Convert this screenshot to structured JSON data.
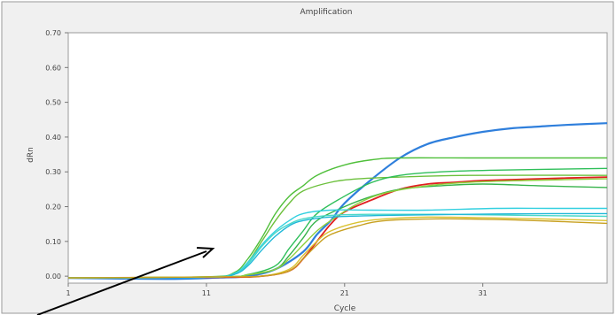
{
  "chart_data": {
    "type": "line",
    "title": "Amplification",
    "xlabel": "Cycle",
    "ylabel": "dRn",
    "xlim": [
      1,
      40
    ],
    "ylim": [
      -0.02,
      0.7
    ],
    "x_ticks": [
      "1",
      "11",
      "21",
      "31"
    ],
    "x_tick_values": [
      1,
      11,
      21,
      31
    ],
    "y_ticks": [
      "0.00",
      "0.10",
      "0.20",
      "0.30",
      "0.40",
      "0.50",
      "0.60",
      "0.70"
    ],
    "y_tick_values": [
      0,
      0.1,
      0.2,
      0.3,
      0.4,
      0.5,
      0.6,
      0.7
    ],
    "grid": false,
    "legend": "none",
    "colors": {
      "panel_bg": "#f0f0f0",
      "plot_bg": "#ffffff",
      "border": "#9a9a9a",
      "axis_text": "#444444",
      "arrow": "#000000"
    },
    "series": [
      {
        "color": "#2f7fdc",
        "width": 2.2,
        "points": [
          [
            1,
            -0.005
          ],
          [
            8,
            -0.008
          ],
          [
            12,
            -0.004
          ],
          [
            14,
            0.0
          ],
          [
            16,
            0.02
          ],
          [
            18,
            0.07
          ],
          [
            19,
            0.12
          ],
          [
            20,
            0.16
          ],
          [
            21,
            0.21
          ],
          [
            23,
            0.28
          ],
          [
            25,
            0.34
          ],
          [
            27,
            0.38
          ],
          [
            29,
            0.4
          ],
          [
            31,
            0.415
          ],
          [
            33,
            0.425
          ],
          [
            35,
            0.43
          ],
          [
            37,
            0.435
          ],
          [
            40,
            0.44
          ]
        ]
      },
      {
        "color": "#e02020",
        "width": 1.8,
        "points": [
          [
            1,
            -0.005
          ],
          [
            12,
            -0.003
          ],
          [
            15,
            0.0
          ],
          [
            17,
            0.015
          ],
          [
            18,
            0.05
          ],
          [
            19,
            0.1
          ],
          [
            20,
            0.15
          ],
          [
            21,
            0.185
          ],
          [
            23,
            0.22
          ],
          [
            25,
            0.25
          ],
          [
            27,
            0.265
          ],
          [
            29,
            0.27
          ],
          [
            31,
            0.275
          ],
          [
            35,
            0.28
          ],
          [
            40,
            0.285
          ]
        ]
      },
      {
        "color": "#4fbf3a",
        "width": 1.4,
        "points": [
          [
            1,
            -0.005
          ],
          [
            11,
            -0.002
          ],
          [
            13,
            0.01
          ],
          [
            14,
            0.05
          ],
          [
            15,
            0.11
          ],
          [
            16,
            0.18
          ],
          [
            17,
            0.23
          ],
          [
            18,
            0.26
          ],
          [
            19,
            0.29
          ],
          [
            21,
            0.32
          ],
          [
            23,
            0.335
          ],
          [
            25,
            0.34
          ],
          [
            30,
            0.34
          ],
          [
            40,
            0.34
          ]
        ]
      },
      {
        "color": "#6cc03c",
        "width": 1.4,
        "points": [
          [
            1,
            -0.005
          ],
          [
            11,
            -0.002
          ],
          [
            13,
            0.005
          ],
          [
            14,
            0.04
          ],
          [
            15,
            0.1
          ],
          [
            16,
            0.16
          ],
          [
            17,
            0.21
          ],
          [
            18,
            0.245
          ],
          [
            20,
            0.27
          ],
          [
            22,
            0.28
          ],
          [
            25,
            0.285
          ],
          [
            30,
            0.29
          ],
          [
            40,
            0.29
          ]
        ]
      },
      {
        "color": "#2fbf5a",
        "width": 1.4,
        "points": [
          [
            1,
            -0.005
          ],
          [
            12,
            -0.002
          ],
          [
            14,
            0.005
          ],
          [
            16,
            0.03
          ],
          [
            17,
            0.08
          ],
          [
            18,
            0.13
          ],
          [
            19,
            0.18
          ],
          [
            21,
            0.23
          ],
          [
            23,
            0.27
          ],
          [
            25,
            0.29
          ],
          [
            28,
            0.3
          ],
          [
            32,
            0.305
          ],
          [
            40,
            0.31
          ]
        ]
      },
      {
        "color": "#36b34a",
        "width": 1.4,
        "points": [
          [
            1,
            -0.005
          ],
          [
            12,
            -0.002
          ],
          [
            14,
            0.004
          ],
          [
            16,
            0.02
          ],
          [
            17,
            0.06
          ],
          [
            18,
            0.11
          ],
          [
            19,
            0.16
          ],
          [
            21,
            0.2
          ],
          [
            23,
            0.23
          ],
          [
            25,
            0.25
          ],
          [
            28,
            0.26
          ],
          [
            31,
            0.265
          ],
          [
            35,
            0.26
          ],
          [
            40,
            0.255
          ]
        ]
      },
      {
        "color": "#8fcf3c",
        "width": 1.4,
        "points": [
          [
            1,
            -0.005
          ],
          [
            12,
            -0.002
          ],
          [
            14,
            0.004
          ],
          [
            16,
            0.02
          ],
          [
            17,
            0.05
          ],
          [
            18,
            0.09
          ],
          [
            19,
            0.13
          ],
          [
            20,
            0.16
          ],
          [
            22,
            0.21
          ],
          [
            24,
            0.24
          ],
          [
            27,
            0.26
          ],
          [
            30,
            0.27
          ],
          [
            34,
            0.275
          ],
          [
            40,
            0.28
          ]
        ]
      },
      {
        "color": "#33d0e0",
        "width": 1.4,
        "points": [
          [
            1,
            -0.005
          ],
          [
            11,
            -0.003
          ],
          [
            13,
            0.008
          ],
          [
            14,
            0.04
          ],
          [
            15,
            0.09
          ],
          [
            16,
            0.13
          ],
          [
            17,
            0.16
          ],
          [
            18,
            0.18
          ],
          [
            20,
            0.19
          ],
          [
            23,
            0.19
          ],
          [
            27,
            0.19
          ],
          [
            32,
            0.195
          ],
          [
            36,
            0.195
          ],
          [
            40,
            0.195
          ]
        ]
      },
      {
        "color": "#4ad8c8",
        "width": 1.4,
        "points": [
          [
            1,
            -0.005
          ],
          [
            11,
            -0.003
          ],
          [
            13,
            0.006
          ],
          [
            14,
            0.035
          ],
          [
            15,
            0.085
          ],
          [
            16,
            0.125
          ],
          [
            17,
            0.15
          ],
          [
            18,
            0.165
          ],
          [
            20,
            0.175
          ],
          [
            23,
            0.178
          ],
          [
            28,
            0.178
          ],
          [
            34,
            0.175
          ],
          [
            40,
            0.172
          ]
        ]
      },
      {
        "color": "#1fb8d8",
        "width": 1.4,
        "points": [
          [
            1,
            -0.005
          ],
          [
            11,
            -0.003
          ],
          [
            13,
            0.005
          ],
          [
            14,
            0.03
          ],
          [
            15,
            0.075
          ],
          [
            16,
            0.115
          ],
          [
            17,
            0.145
          ],
          [
            18,
            0.16
          ],
          [
            20,
            0.17
          ],
          [
            24,
            0.175
          ],
          [
            30,
            0.178
          ],
          [
            36,
            0.18
          ],
          [
            40,
            0.18
          ]
        ]
      },
      {
        "color": "#d9c230",
        "width": 1.4,
        "points": [
          [
            1,
            -0.005
          ],
          [
            12,
            -0.002
          ],
          [
            15,
            0.0
          ],
          [
            17,
            0.02
          ],
          [
            18,
            0.06
          ],
          [
            19,
            0.1
          ],
          [
            20,
            0.13
          ],
          [
            22,
            0.155
          ],
          [
            24,
            0.165
          ],
          [
            27,
            0.17
          ],
          [
            31,
            0.168
          ],
          [
            35,
            0.165
          ],
          [
            40,
            0.16
          ]
        ]
      },
      {
        "color": "#c8a020",
        "width": 1.4,
        "points": [
          [
            1,
            -0.005
          ],
          [
            12,
            -0.002
          ],
          [
            15,
            0.0
          ],
          [
            17,
            0.015
          ],
          [
            18,
            0.05
          ],
          [
            19,
            0.09
          ],
          [
            20,
            0.12
          ],
          [
            22,
            0.145
          ],
          [
            24,
            0.16
          ],
          [
            28,
            0.165
          ],
          [
            32,
            0.163
          ],
          [
            36,
            0.158
          ],
          [
            40,
            0.152
          ]
        ]
      }
    ]
  }
}
